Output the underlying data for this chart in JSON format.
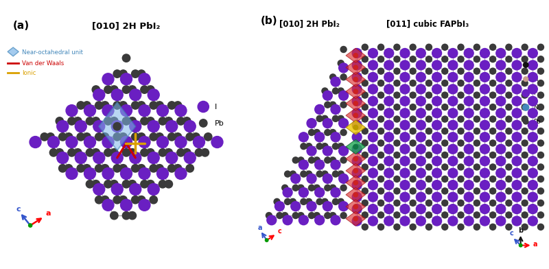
{
  "title_a": "[010] 2H PbI₂",
  "title_b1": "[010] 2H PbI₂",
  "title_b2": "[011] cubic FAPbI₃",
  "label_a": "(a)",
  "label_b": "(b)",
  "I_color": "#6A1FC2",
  "Pb_color": "#3A3A3A",
  "C_color": "#111111",
  "H_color": "#C8A090",
  "N_color": "#4488BB",
  "vdw_color": "#CC0000",
  "ionic_color": "#DAA000",
  "oct_color": "#7EB6E8",
  "oct_alpha": 0.55,
  "red_diamond_color": "#DD3333",
  "red_diamond_alpha": 0.65,
  "yellow_diamond_color": "#EEC900",
  "yellow_diamond_alpha": 0.8,
  "green_diamond_color": "#22AA55",
  "green_diamond_alpha": 0.8,
  "bond_color": "#999999",
  "bg_color": "#FFFFFF",
  "fig_width": 8.0,
  "fig_height": 3.92
}
